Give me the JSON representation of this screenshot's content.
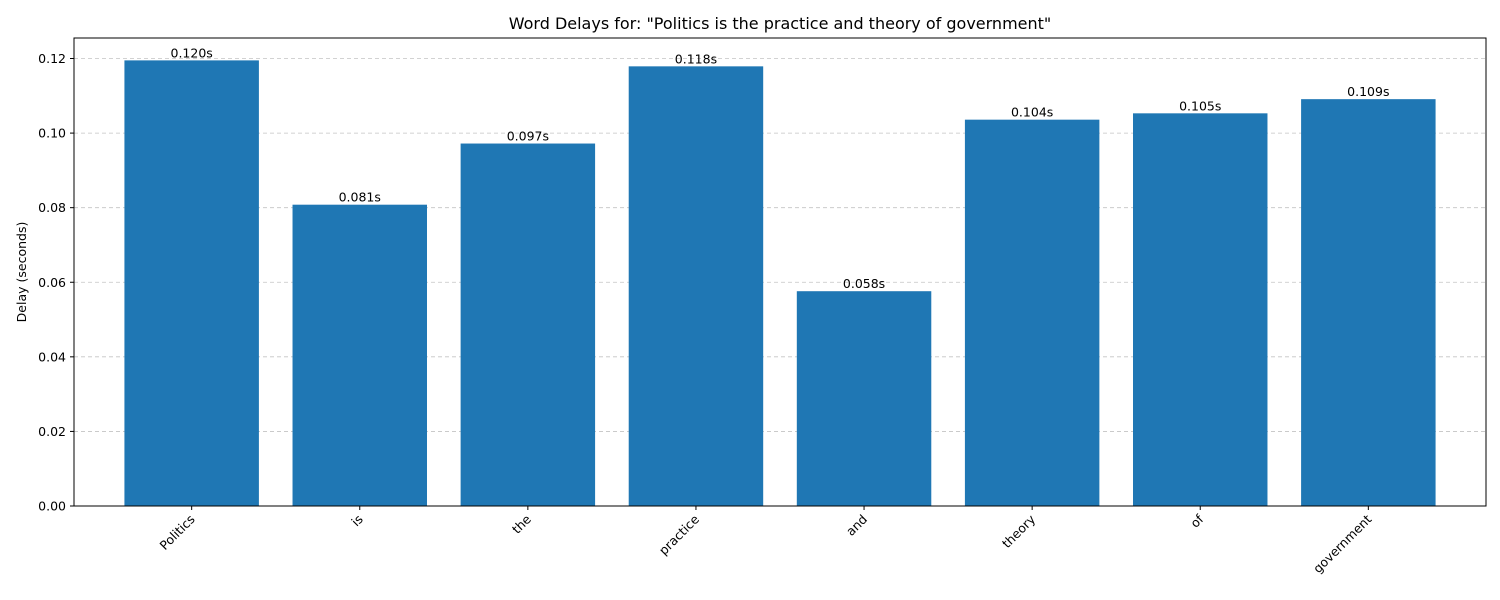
{
  "chart_data": {
    "type": "bar",
    "title": "Word Delays for: \"Politics is the practice and theory of government\"",
    "xlabel": "",
    "ylabel": "Delay (seconds)",
    "categories": [
      "Politics",
      "is",
      "the",
      "practice",
      "and",
      "theory",
      "of",
      "government"
    ],
    "values": [
      0.1195,
      0.0808,
      0.0972,
      0.1179,
      0.0576,
      0.1036,
      0.1053,
      0.1091
    ],
    "data_labels": [
      "0.120s",
      "0.081s",
      "0.097s",
      "0.118s",
      "0.058s",
      "0.104s",
      "0.105s",
      "0.109s"
    ],
    "ylim": [
      0,
      0.1255
    ],
    "yticks": [
      0.0,
      0.02,
      0.04,
      0.06,
      0.08,
      0.1,
      0.12
    ],
    "ytick_labels": [
      "0.00",
      "0.02",
      "0.04",
      "0.06",
      "0.08",
      "0.10",
      "0.12"
    ],
    "grid": "y-dashed",
    "bar_color": "#1f77b4"
  }
}
